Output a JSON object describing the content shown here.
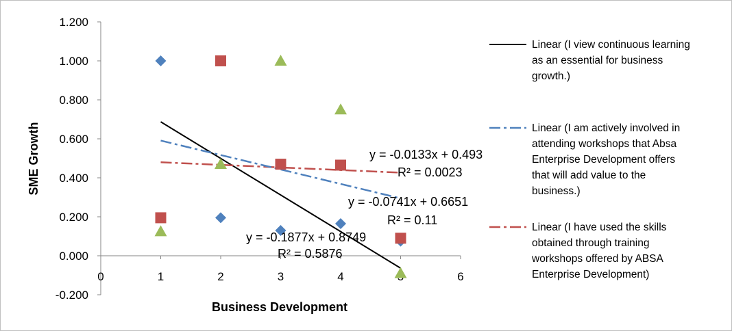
{
  "chart_data": {
    "type": "scatter",
    "xlabel": "Business Development",
    "ylabel": "SME Growth",
    "xlim": [
      0,
      6
    ],
    "ylim": [
      -0.2,
      1.2
    ],
    "x_ticks": [
      "0",
      "1",
      "2",
      "3",
      "4",
      "5",
      "6"
    ],
    "y_ticks": [
      "-0.200",
      "0.000",
      "0.200",
      "0.400",
      "0.600",
      "0.800",
      "1.000",
      "1.200"
    ],
    "grid": false,
    "legend_position": "right",
    "series": [
      {
        "marker": "diamond",
        "color": "#4f81bd",
        "points": [
          [
            1,
            1.0
          ],
          [
            2,
            0.195
          ],
          [
            3,
            0.13
          ],
          [
            4,
            0.165
          ],
          [
            5,
            0.075
          ]
        ],
        "trendline": {
          "label": "Linear (I view continuous learning as an essential for business growth.)",
          "slope": -0.1877,
          "intercept": 0.8749,
          "equation": "y = -0.1877x + 0.8749",
          "r2": "R² = 0.5876",
          "color": "#000000",
          "style": "solid"
        }
      },
      {
        "marker": "square",
        "color": "#c0504d",
        "points": [
          [
            1,
            0.195
          ],
          [
            2,
            1.0
          ],
          [
            3,
            0.47
          ],
          [
            4,
            0.465
          ],
          [
            5,
            0.09
          ]
        ],
        "trendline": {
          "label": "Linear (I have used the skills obtained through training workshops offered by ABSA Enterprise Development)",
          "slope": -0.0133,
          "intercept": 0.493,
          "equation": "y = -0.0133x + 0.493",
          "r2": "R² = 0.0023",
          "color": "#c0504d",
          "style": "dashdot"
        }
      },
      {
        "marker": "triangle",
        "color": "#9bbb59",
        "points": [
          [
            1,
            0.125
          ],
          [
            2,
            0.47
          ],
          [
            3,
            1.0
          ],
          [
            4,
            0.75
          ],
          [
            5,
            -0.09
          ]
        ],
        "trendline": {
          "label": "Linear (I am actively involved in attending workshops that Absa Enterprise Development offers that will add value to the business.)",
          "slope": -0.0741,
          "intercept": 0.6651,
          "equation": "y = -0.0741x + 0.6651",
          "r2": "R² = 0.11",
          "color": "#4f81bd",
          "style": "dashdot"
        }
      }
    ],
    "legend": [
      {
        "lines": [
          "Linear (I view continuous learning",
          "as an essential for business",
          "growth.)"
        ],
        "color": "#000000",
        "style": "solid"
      },
      {
        "lines": [
          "Linear (I am actively involved in",
          "attending workshops that Absa",
          "Enterprise Development offers",
          "that will add value to the",
          "business.)"
        ],
        "color": "#4f81bd",
        "style": "dashdot"
      },
      {
        "lines": [
          "Linear (I have used the skills",
          "obtained through training",
          "workshops offered by ABSA",
          "Enterprise Development)"
        ],
        "color": "#c0504d",
        "style": "dashdot"
      }
    ]
  }
}
